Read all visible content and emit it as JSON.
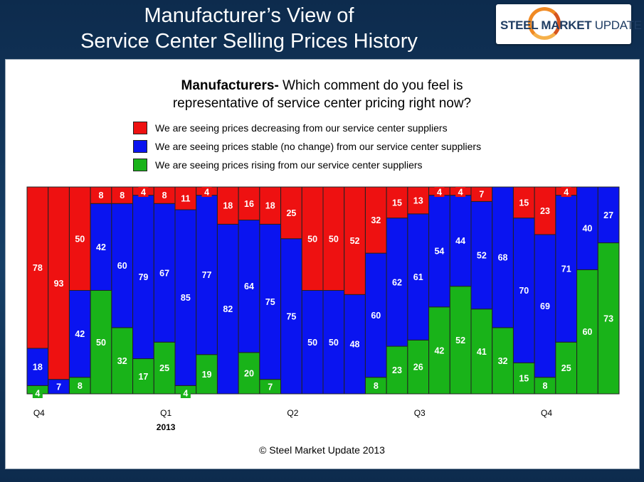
{
  "slide": {
    "title_line1": "Manufacturer’s View of",
    "title_line2": "Service Center Selling Prices History"
  },
  "logo": {
    "text_bold": "STEEL MARKET",
    "text_light": " UPDATE"
  },
  "question": {
    "bold": "Manufacturers-",
    "line1_rest": " Which comment do you feel is",
    "line2": "representative of service center pricing right now?"
  },
  "footer": "© Steel Market Update 2013",
  "chart_data": {
    "type": "bar",
    "stacked": true,
    "percent_scale": [
      0,
      100
    ],
    "series": [
      {
        "key": "rising",
        "name": "We are seeing prices rising from our service center suppliers",
        "color": "#19b319",
        "values": [
          4,
          0,
          8,
          50,
          32,
          17,
          25,
          4,
          19,
          0,
          20,
          7,
          0,
          0,
          0,
          0,
          8,
          23,
          26,
          42,
          52,
          41,
          32,
          15,
          8,
          25,
          60,
          73
        ]
      },
      {
        "key": "stable",
        "name": "We are seeing prices stable (no change) from our service center suppliers",
        "color": "#0a14f0",
        "values": [
          18,
          7,
          42,
          42,
          60,
          79,
          67,
          85,
          77,
          82,
          64,
          75,
          75,
          50,
          50,
          48,
          60,
          62,
          61,
          54,
          44,
          52,
          68,
          70,
          69,
          71,
          40,
          27
        ]
      },
      {
        "key": "decreasing",
        "name": "We are seeing prices decreasing from our service center suppliers",
        "color": "#ee1111",
        "values": [
          78,
          93,
          50,
          8,
          8,
          4,
          8,
          11,
          4,
          18,
          16,
          18,
          25,
          50,
          50,
          52,
          32,
          15,
          13,
          4,
          4,
          7,
          0,
          15,
          23,
          4,
          0,
          0
        ]
      }
    ],
    "x_labels": [
      {
        "index": 0,
        "label": "Q4",
        "sub": ""
      },
      {
        "index": 6,
        "label": "Q1",
        "sub": "2013"
      },
      {
        "index": 12,
        "label": "Q2",
        "sub": ""
      },
      {
        "index": 18,
        "label": "Q3",
        "sub": ""
      },
      {
        "index": 24,
        "label": "Q4",
        "sub": ""
      }
    ],
    "legend_order": [
      "decreasing",
      "stable",
      "rising"
    ],
    "legend_position": "top"
  }
}
